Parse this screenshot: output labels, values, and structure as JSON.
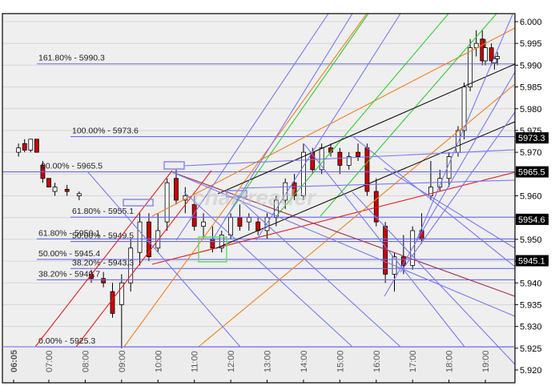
{
  "chart_data": {
    "type": "candlestick",
    "title": "",
    "xlabel": "",
    "ylabel": "",
    "ylim": [
      5.92,
      6.002
    ],
    "y_ticks": [
      "6.000",
      "5.995",
      "5.990",
      "5.985",
      "5.980",
      "5.975",
      "5.970",
      "5.965",
      "5.960",
      "5.955",
      "5.950",
      "5.945",
      "5.940",
      "5.935",
      "5.930",
      "5.925",
      "5.920"
    ],
    "x_ticks": [
      "06:05",
      "07:00",
      "08:00",
      "09:00",
      "10:00",
      "11:00",
      "12:00",
      "13:00",
      "14:00",
      "15:00",
      "16:00",
      "17:00",
      "18:00",
      "19:00"
    ],
    "grid": true,
    "price_tags": [
      {
        "label": "5973.3",
        "value": 5.9733
      },
      {
        "label": "5965.5",
        "value": 5.9655
      },
      {
        "label": "5954.6",
        "value": 5.9546
      },
      {
        "label": "5945.1",
        "value": 5.9451
      }
    ],
    "fib_levels": [
      {
        "label": "161.80% - 5990.3",
        "value": 5.9903,
        "x_start": 43
      },
      {
        "label": "100.00% - 5973.6",
        "value": 5.9736,
        "x_start": 85
      },
      {
        "label": "00.00% - 5965.5",
        "value": 5.9655,
        "x_start": 0
      },
      {
        "label": "61.80% - 5955.1",
        "value": 5.9551,
        "x_start": 85
      },
      {
        "label": "61.80% - 5950.1",
        "value": 5.9501,
        "x_start": 43
      },
      {
        "label": "50.00% - 5949.5",
        "value": 5.9495,
        "x_start": 85
      },
      {
        "label": "50.00% - 5945.4",
        "value": 5.9454,
        "x_start": 43
      },
      {
        "label": "38.20% - 5943.3",
        "value": 5.9433,
        "x_start": 85
      },
      {
        "label": "38.20% - 5940.7",
        "value": 5.9407,
        "x_start": 43
      },
      {
        "label": "0.00% - 5925.3",
        "value": 5.9253,
        "x_start": 43
      }
    ],
    "candles_approx": [
      {
        "t": "06:10",
        "o": 5.97,
        "h": 5.972,
        "l": 5.969,
        "c": 5.971
      },
      {
        "t": "06:20",
        "o": 5.972,
        "h": 5.973,
        "l": 5.97,
        "c": 5.9705
      },
      {
        "t": "06:30",
        "o": 5.9705,
        "h": 5.973,
        "l": 5.97,
        "c": 5.973
      },
      {
        "t": "06:40",
        "o": 5.973,
        "h": 5.973,
        "l": 5.97,
        "c": 5.97
      },
      {
        "t": "06:50",
        "o": 5.967,
        "h": 5.968,
        "l": 5.963,
        "c": 5.964
      },
      {
        "t": "07:00",
        "o": 5.964,
        "h": 5.964,
        "l": 5.962,
        "c": 5.962
      },
      {
        "t": "07:10",
        "o": 5.961,
        "h": 5.963,
        "l": 5.96,
        "c": 5.962
      },
      {
        "t": "07:30",
        "o": 5.9615,
        "h": 5.9625,
        "l": 5.96,
        "c": 5.961
      },
      {
        "t": "07:50",
        "o": 5.96,
        "h": 5.961,
        "l": 5.959,
        "c": 5.9605
      },
      {
        "t": "08:10",
        "o": 5.942,
        "h": 5.943,
        "l": 5.94,
        "c": 5.941
      },
      {
        "t": "08:30",
        "o": 5.941,
        "h": 5.9425,
        "l": 5.939,
        "c": 5.94
      },
      {
        "t": "08:45",
        "o": 5.938,
        "h": 5.94,
        "l": 5.932,
        "c": 5.933
      },
      {
        "t": "09:00",
        "o": 5.935,
        "h": 5.942,
        "l": 5.925,
        "c": 5.94
      },
      {
        "t": "09:15",
        "o": 5.94,
        "h": 5.95,
        "l": 5.938,
        "c": 5.948
      },
      {
        "t": "09:30",
        "o": 5.947,
        "h": 5.956,
        "l": 5.944,
        "c": 5.954
      },
      {
        "t": "09:45",
        "o": 5.954,
        "h": 5.956,
        "l": 5.945,
        "c": 5.946
      },
      {
        "t": "10:00",
        "o": 5.948,
        "h": 5.956,
        "l": 5.947,
        "c": 5.952
      },
      {
        "t": "10:15",
        "o": 5.954,
        "h": 5.964,
        "l": 5.952,
        "c": 5.963
      },
      {
        "t": "10:30",
        "o": 5.964,
        "h": 5.966,
        "l": 5.958,
        "c": 5.959
      },
      {
        "t": "10:45",
        "o": 5.959,
        "h": 5.962,
        "l": 5.956,
        "c": 5.96
      },
      {
        "t": "11:00",
        "o": 5.958,
        "h": 5.96,
        "l": 5.952,
        "c": 5.953
      },
      {
        "t": "11:15",
        "o": 5.953,
        "h": 5.956,
        "l": 5.95,
        "c": 5.954
      },
      {
        "t": "11:30",
        "o": 5.95,
        "h": 5.953,
        "l": 5.947,
        "c": 5.948
      },
      {
        "t": "11:45",
        "o": 5.948,
        "h": 5.952,
        "l": 5.947,
        "c": 5.951
      },
      {
        "t": "12:00",
        "o": 5.951,
        "h": 5.956,
        "l": 5.95,
        "c": 5.955
      },
      {
        "t": "12:15",
        "o": 5.955,
        "h": 5.958,
        "l": 5.952,
        "c": 5.953
      },
      {
        "t": "12:30",
        "o": 5.954,
        "h": 5.956,
        "l": 5.952,
        "c": 5.955
      },
      {
        "t": "12:45",
        "o": 5.954,
        "h": 5.955,
        "l": 5.951,
        "c": 5.952
      },
      {
        "t": "13:00",
        "o": 5.952,
        "h": 5.956,
        "l": 5.95,
        "c": 5.955
      },
      {
        "t": "13:15",
        "o": 5.955,
        "h": 5.96,
        "l": 5.953,
        "c": 5.959
      },
      {
        "t": "13:30",
        "o": 5.959,
        "h": 5.964,
        "l": 5.957,
        "c": 5.963
      },
      {
        "t": "13:45",
        "o": 5.963,
        "h": 5.965,
        "l": 5.959,
        "c": 5.96
      },
      {
        "t": "14:00",
        "o": 5.96,
        "h": 5.972,
        "l": 5.959,
        "c": 5.97
      },
      {
        "t": "14:15",
        "o": 5.97,
        "h": 5.971,
        "l": 5.965,
        "c": 5.966
      },
      {
        "t": "14:30",
        "o": 5.966,
        "h": 5.972,
        "l": 5.965,
        "c": 5.971
      },
      {
        "t": "14:45",
        "o": 5.971,
        "h": 5.972,
        "l": 5.969,
        "c": 5.97
      },
      {
        "t": "15:00",
        "o": 5.97,
        "h": 5.971,
        "l": 5.965,
        "c": 5.967
      },
      {
        "t": "15:15",
        "o": 5.967,
        "h": 5.97,
        "l": 5.966,
        "c": 5.969
      },
      {
        "t": "15:30",
        "o": 5.97,
        "h": 5.972,
        "l": 5.968,
        "c": 5.969
      },
      {
        "t": "15:45",
        "o": 5.971,
        "h": 5.972,
        "l": 5.96,
        "c": 5.961
      },
      {
        "t": "16:00",
        "o": 5.961,
        "h": 5.964,
        "l": 5.953,
        "c": 5.954
      },
      {
        "t": "16:15",
        "o": 5.953,
        "h": 5.954,
        "l": 5.94,
        "c": 5.942
      },
      {
        "t": "16:30",
        "o": 5.942,
        "h": 5.947,
        "l": 5.938,
        "c": 5.946
      },
      {
        "t": "16:45",
        "o": 5.946,
        "h": 5.951,
        "l": 5.942,
        "c": 5.944
      },
      {
        "t": "17:00",
        "o": 5.944,
        "h": 5.953,
        "l": 5.943,
        "c": 5.952
      },
      {
        "t": "17:15",
        "o": 5.952,
        "h": 5.956,
        "l": 5.949,
        "c": 5.95
      },
      {
        "t": "17:30",
        "o": 5.96,
        "h": 5.968,
        "l": 5.959,
        "c": 5.962
      },
      {
        "t": "17:45",
        "o": 5.962,
        "h": 5.966,
        "l": 5.961,
        "c": 5.964
      },
      {
        "t": "18:00",
        "o": 5.964,
        "h": 5.97,
        "l": 5.962,
        "c": 5.969
      },
      {
        "t": "18:15",
        "o": 5.97,
        "h": 5.976,
        "l": 5.969,
        "c": 5.975
      },
      {
        "t": "18:25",
        "o": 5.975,
        "h": 5.986,
        "l": 5.973,
        "c": 5.985
      },
      {
        "t": "18:35",
        "o": 5.985,
        "h": 5.996,
        "l": 5.984,
        "c": 5.994
      },
      {
        "t": "18:45",
        "o": 5.994,
        "h": 5.998,
        "l": 5.992,
        "c": 5.995
      },
      {
        "t": "18:55",
        "o": 5.996,
        "h": 5.998,
        "l": 5.99,
        "c": 5.991
      },
      {
        "t": "19:00",
        "o": 5.991,
        "h": 5.996,
        "l": 5.99,
        "c": 5.994
      },
      {
        "t": "19:10",
        "o": 5.994,
        "h": 5.995,
        "l": 5.99,
        "c": 5.991
      },
      {
        "t": "19:15",
        "o": 5.9905,
        "h": 5.992,
        "l": 5.989,
        "c": 5.9915
      },
      {
        "t": "19:20",
        "o": 5.9915,
        "h": 5.993,
        "l": 5.99,
        "c": 5.992
      }
    ],
    "annotations": [
      "watermark logo (semi-transparent)",
      "green rectangle highlight near 11:30",
      "blue rectangles near 09:30 and 10:30"
    ],
    "legend": []
  },
  "colors": {
    "background": "#efefef",
    "grid": "#d6d6d6",
    "fib_line": "#6a6aef",
    "up_candle": "#ffffff",
    "down_candle": "#cc0000",
    "price_tag_bg": "#000000",
    "trend_red": "#e02020",
    "trend_orange": "#f08020",
    "trend_green": "#33cc33",
    "trend_black": "#111111",
    "trend_blue": "#7878f0",
    "trend_maroon": "#a03050",
    "highlight_green": "#66dd66"
  }
}
